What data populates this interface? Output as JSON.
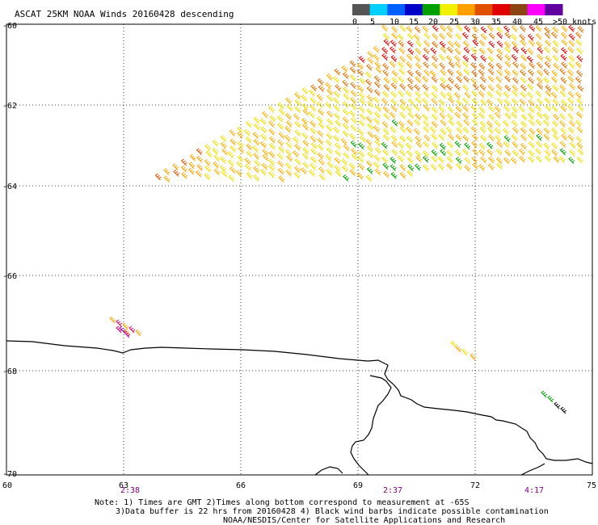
{
  "title": "ASCAT 25KM NOAA Winds 20160428 descending",
  "colorbar": {
    "labels": [
      "0",
      "5",
      "10",
      "15",
      "20",
      "25",
      "30",
      "35",
      "40",
      "45",
      ">50 knots"
    ],
    "colors": [
      "#555555",
      "#00d0ff",
      "#0060ff",
      "#0000c8",
      "#00a000",
      "#f0f000",
      "#ffa000",
      "#e05000",
      "#e00000",
      "#8b4513",
      "#ff00ff",
      "#6000a0"
    ]
  },
  "lat_labels": [
    "-60",
    "-62",
    "-64",
    "-66",
    "-68",
    "-70"
  ],
  "lon_labels": [
    "60",
    "63",
    "66",
    "69",
    "72",
    "75"
  ],
  "times": [
    "2:38",
    "2:37",
    "4:17"
  ],
  "notes": {
    "line1": "Note: 1) Times are GMT 2)Times along bottom correspond to measurement at -65S",
    "line2": "3)Data buffer is 22 hrs from 20160428 4) Black wind barbs indicate possible contamination",
    "line3": "NOAA/NESDIS/Center for Satellite Applications and Research"
  }
}
